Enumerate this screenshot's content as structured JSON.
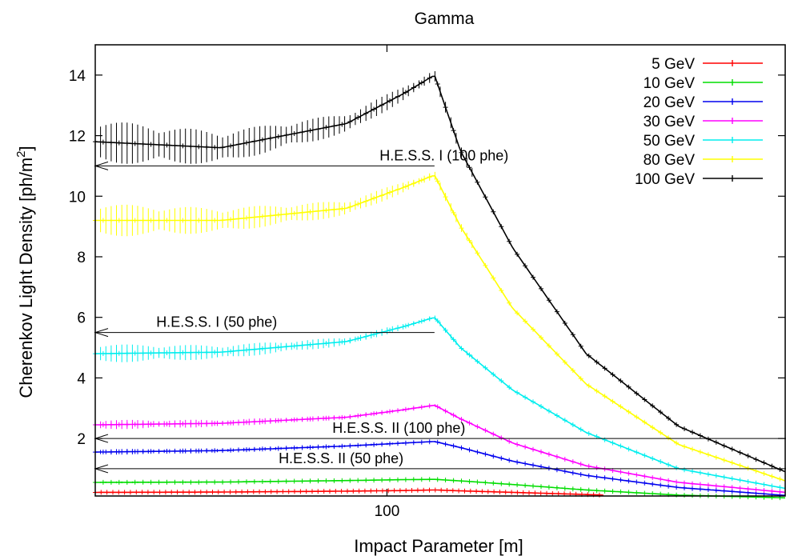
{
  "chart_data": {
    "type": "line",
    "title": "Gamma",
    "xlabel": "Impact Parameter [m]",
    "ylabel_main": "Cherenkov Light Density [ph/m",
    "ylabel_sup": "2",
    "ylabel_tail": "]",
    "xscale": "log",
    "xlim": [
      20,
      900
    ],
    "ylim": [
      0.1,
      15
    ],
    "x_tick_labels": [
      {
        "value": 100,
        "label": "100"
      }
    ],
    "y_ticks": [
      2,
      4,
      6,
      8,
      10,
      12,
      14
    ],
    "legend_position": "top-right",
    "series": [
      {
        "name": "5 GeV",
        "color": "#ff0000",
        "peak": 0.3,
        "xmax": 330,
        "points": [
          [
            20,
            0.22
          ],
          [
            40,
            0.23
          ],
          [
            80,
            0.26
          ],
          [
            110,
            0.28
          ],
          [
            130,
            0.3
          ],
          [
            150,
            0.27
          ],
          [
            200,
            0.22
          ],
          [
            300,
            0.15
          ],
          [
            330,
            0.13
          ]
        ]
      },
      {
        "name": "10 GeV",
        "color": "#00dd00",
        "peak": 0.65,
        "xmax": 900,
        "points": [
          [
            20,
            0.55
          ],
          [
            40,
            0.56
          ],
          [
            80,
            0.61
          ],
          [
            110,
            0.64
          ],
          [
            130,
            0.65
          ],
          [
            150,
            0.6
          ],
          [
            200,
            0.48
          ],
          [
            300,
            0.3
          ],
          [
            500,
            0.13
          ],
          [
            900,
            0.04
          ]
        ]
      },
      {
        "name": "20 GeV",
        "color": "#0000ee",
        "peak": 1.9,
        "xmax": 900,
        "points": [
          [
            20,
            1.55
          ],
          [
            40,
            1.6
          ],
          [
            80,
            1.75
          ],
          [
            110,
            1.85
          ],
          [
            130,
            1.9
          ],
          [
            150,
            1.7
          ],
          [
            200,
            1.25
          ],
          [
            300,
            0.78
          ],
          [
            500,
            0.38
          ],
          [
            900,
            0.12
          ]
        ]
      },
      {
        "name": "30 GeV",
        "color": "#ff00ff",
        "peak": 3.1,
        "xmax": 900,
        "points": [
          [
            20,
            2.45
          ],
          [
            40,
            2.5
          ],
          [
            80,
            2.7
          ],
          [
            110,
            2.95
          ],
          [
            130,
            3.1
          ],
          [
            150,
            2.65
          ],
          [
            200,
            1.85
          ],
          [
            300,
            1.1
          ],
          [
            500,
            0.55
          ],
          [
            900,
            0.22
          ]
        ]
      },
      {
        "name": "50 GeV",
        "color": "#00eeee",
        "peak": 6.0,
        "xmax": 900,
        "points": [
          [
            20,
            4.8
          ],
          [
            40,
            4.85
          ],
          [
            80,
            5.2
          ],
          [
            110,
            5.7
          ],
          [
            130,
            6.0
          ],
          [
            150,
            5.0
          ],
          [
            200,
            3.6
          ],
          [
            300,
            2.2
          ],
          [
            500,
            1.0
          ],
          [
            900,
            0.35
          ]
        ]
      },
      {
        "name": "80 GeV",
        "color": "#ffff00",
        "peak": 10.7,
        "xmax": 900,
        "points": [
          [
            20,
            9.2
          ],
          [
            40,
            9.2
          ],
          [
            80,
            9.6
          ],
          [
            110,
            10.3
          ],
          [
            130,
            10.7
          ],
          [
            150,
            9.0
          ],
          [
            200,
            6.3
          ],
          [
            300,
            3.8
          ],
          [
            500,
            1.8
          ],
          [
            900,
            0.6
          ]
        ]
      },
      {
        "name": "100 GeV",
        "color": "#000000",
        "peak": 14.0,
        "xmax": 900,
        "points": [
          [
            20,
            11.8
          ],
          [
            40,
            11.6
          ],
          [
            80,
            12.4
          ],
          [
            110,
            13.4
          ],
          [
            130,
            14.0
          ],
          [
            150,
            11.5
          ],
          [
            200,
            8.3
          ],
          [
            300,
            4.8
          ],
          [
            500,
            2.4
          ],
          [
            900,
            0.9
          ]
        ]
      }
    ],
    "thresholds": [
      {
        "label": "H.E.S.S. I (100 phe)",
        "y": 11.0
      },
      {
        "label": "H.E.S.S. I (50 phe)",
        "y": 5.5
      },
      {
        "label": "H.E.S.S. II (100 phe)",
        "y": 2.0
      },
      {
        "label": "H.E.S.S. II (50 phe)",
        "y": 1.0
      }
    ]
  }
}
